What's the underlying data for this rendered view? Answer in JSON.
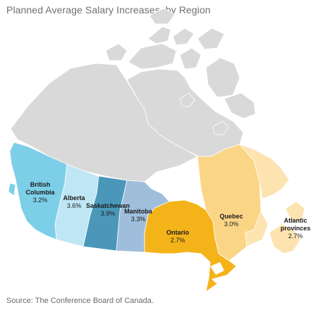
{
  "title": "Planned Average Salary Increases, by Region",
  "source": "Source: The Conference Board of Canada.",
  "colors": {
    "north": "#d9d9d9",
    "british_columbia": "#7dcfe8",
    "alberta": "#bfe6f5",
    "saskatchewan": "#4b97b9",
    "manitoba": "#9fbedb",
    "ontario": "#f5b31a",
    "quebec": "#fbd586",
    "atlantic": "#fce3b0"
  },
  "regions": [
    {
      "name": "British Columbia",
      "value": "3.2%"
    },
    {
      "name": "Alberta",
      "value": "3.6%"
    },
    {
      "name": "Saskatchewan",
      "value": "3.9%"
    },
    {
      "name": "Manitoba",
      "value": "3.3%"
    },
    {
      "name": "Ontario",
      "value": "2.7%"
    },
    {
      "name": "Quebec",
      "value": "3.0%"
    },
    {
      "name": "Atlantic provinces",
      "value": "2.7%"
    }
  ]
}
